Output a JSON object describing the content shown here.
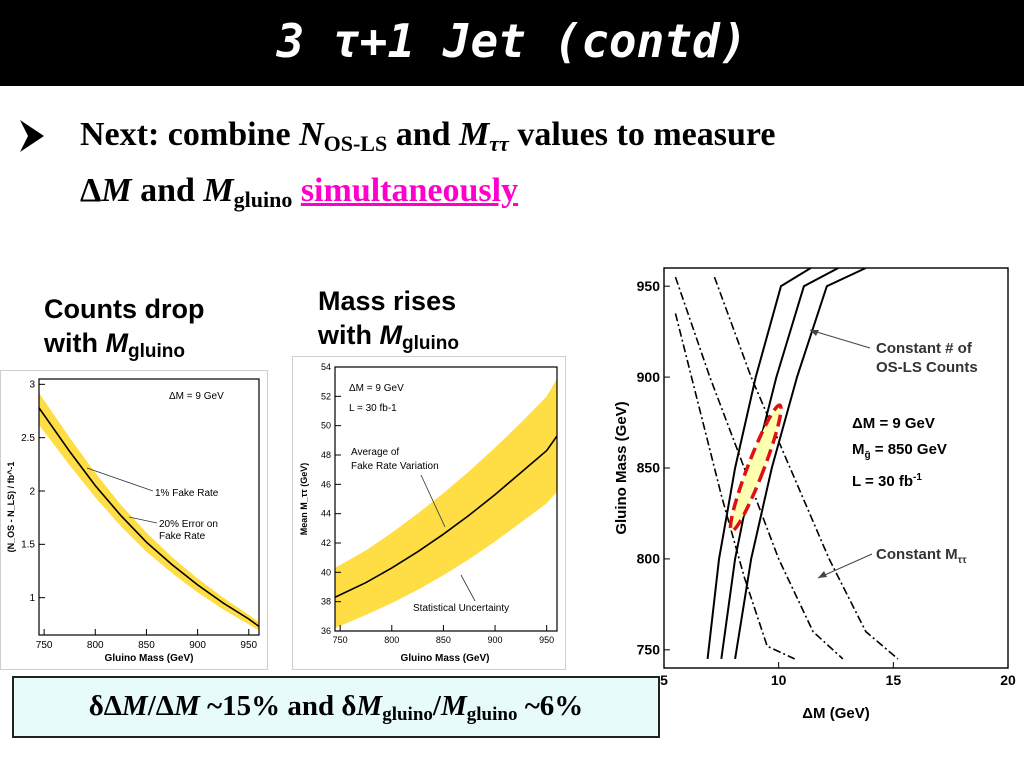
{
  "slide": {
    "title": "3 τ+1 Jet (contd)",
    "bullet": {
      "line1_a": "Next: combine ",
      "line1_n": "N",
      "line1_n_sub": "OS-LS",
      "line1_b": " and ",
      "line1_m": "M",
      "line1_m_sub": "ττ",
      "line1_c": " values to measure",
      "line2_delta": "Δ",
      "line2_m": "M",
      "line2_and": " and ",
      "line2_mg": "M",
      "line2_mg_sub": "gluino",
      "line2_highlight": "simultaneously"
    },
    "caption_left": {
      "line1": "Counts drop",
      "line2": "with ",
      "m": "M",
      "sub": "gluino"
    },
    "caption_mid": {
      "line1": "Mass rises",
      "line2": "with ",
      "m": "M",
      "sub": "gluino"
    },
    "summary": {
      "a": "δΔ",
      "b": "M",
      "c": "/Δ",
      "d": "M",
      "e": " ~15% and δ",
      "f": "M",
      "g": "gluino",
      "h": "/",
      "i": "M",
      "j": "gluino",
      "k": " ~6%"
    },
    "colors": {
      "title_bg": "#000000",
      "band": "#ffdd44",
      "highlight_text": "#ff00cc",
      "ellipse_edge": "#dd1111",
      "ellipse_fill": "#ffffb0",
      "summary_bg": "#e7fbfb"
    }
  },
  "chart_data": [
    {
      "type": "line",
      "xlabel": "Gluino Mass (GeV)",
      "ylabel": "(N_OS - N_LS) / fb^-1",
      "xlim": [
        745,
        960
      ],
      "ylim": [
        0.65,
        3.05
      ],
      "xticks": [
        "750",
        "800",
        "850",
        "900",
        "950"
      ],
      "yticks": [
        "1",
        "1.5",
        "2",
        "2.5",
        "3"
      ],
      "annotations": [
        "ΔM = 9 GeV",
        "1% Fake Rate",
        "20% Error on",
        "Fake Rate"
      ],
      "series": [
        {
          "x": [
            745,
            775,
            800,
            825,
            850,
            875,
            900,
            925,
            950,
            960
          ],
          "y": [
            2.78,
            2.37,
            2.05,
            1.77,
            1.52,
            1.31,
            1.12,
            0.95,
            0.8,
            0.73
          ]
        }
      ],
      "band": {
        "x": [
          745,
          775,
          800,
          825,
          850,
          875,
          900,
          925,
          950,
          960
        ],
        "upper": [
          2.92,
          2.5,
          2.17,
          1.87,
          1.61,
          1.38,
          1.18,
          1.0,
          0.84,
          0.77
        ],
        "lower": [
          2.62,
          2.24,
          1.94,
          1.67,
          1.43,
          1.23,
          1.05,
          0.89,
          0.75,
          0.69
        ]
      }
    },
    {
      "type": "line",
      "xlabel": "Gluino Mass (GeV)",
      "ylabel": "Mean M_ττ (GeV)",
      "xlim": [
        745,
        960
      ],
      "ylim": [
        36,
        54
      ],
      "xticks": [
        "750",
        "800",
        "850",
        "900",
        "950"
      ],
      "yticks": [
        "36",
        "38",
        "40",
        "42",
        "44",
        "46",
        "48",
        "50",
        "52",
        "54"
      ],
      "annotations": [
        "ΔM = 9 GeV",
        "L = 30 fb-1",
        "Average of",
        "Fake Rate Variation",
        "Statistical Uncertainty"
      ],
      "series": [
        {
          "x": [
            745,
            775,
            800,
            825,
            850,
            875,
            900,
            925,
            950,
            960
          ],
          "y": [
            38.3,
            39.3,
            40.3,
            41.4,
            42.6,
            43.9,
            45.3,
            46.8,
            48.3,
            49.3
          ]
        }
      ],
      "band": {
        "x": [
          745,
          775,
          800,
          825,
          850,
          875,
          900,
          925,
          950,
          960
        ],
        "upper": [
          40.3,
          41.5,
          42.7,
          44.0,
          45.4,
          46.9,
          48.5,
          50.2,
          52.0,
          53.2
        ],
        "lower": [
          36.2,
          37.1,
          37.9,
          38.8,
          39.8,
          40.9,
          42.1,
          43.4,
          44.7,
          45.5
        ]
      }
    },
    {
      "type": "line",
      "xlabel": "ΔM (GeV)",
      "ylabel": "Gluino Mass (GeV)",
      "xlim": [
        5,
        20
      ],
      "ylim": [
        740,
        960
      ],
      "xticks": [
        "5",
        "10",
        "15",
        "20"
      ],
      "yticks": [
        "750",
        "800",
        "850",
        "900",
        "950"
      ],
      "annotations": [
        "Constant # of",
        "OS-LS Counts",
        "ΔM = 9 GeV",
        "M",
        "g̃",
        " = 850 GeV",
        "L = 30 fb",
        "-1",
        "Constant M",
        "ττ"
      ],
      "solid_curves": [
        {
          "x": [
            6.9,
            7.4,
            8.1,
            9.0,
            10.1,
            11.4
          ],
          "y": [
            745,
            800,
            850,
            900,
            950,
            960
          ]
        },
        {
          "x": [
            7.5,
            8.1,
            8.9,
            9.9,
            11.1,
            12.6
          ],
          "y": [
            745,
            800,
            850,
            900,
            950,
            960
          ]
        },
        {
          "x": [
            8.1,
            8.8,
            9.7,
            10.8,
            12.1,
            13.8
          ],
          "y": [
            745,
            800,
            850,
            900,
            950,
            960
          ]
        }
      ],
      "dashdot_curves": [
        {
          "x": [
            5.5,
            6.5,
            7.5,
            8.5,
            9.5,
            10.7
          ],
          "y": [
            935,
            885,
            835,
            790,
            752,
            745
          ]
        },
        {
          "x": [
            5.5,
            7.0,
            8.5,
            10.0,
            11.5,
            12.8
          ],
          "y": [
            955,
            900,
            850,
            800,
            760,
            745
          ]
        },
        {
          "x": [
            7.2,
            8.8,
            10.5,
            12.2,
            13.8,
            15.2
          ],
          "y": [
            955,
            900,
            850,
            800,
            760,
            745
          ]
        }
      ],
      "ellipse": {
        "center_dm": 9.0,
        "center_mg": 850,
        "semi_dm": 0.35,
        "semi_mg": 37,
        "tilt_deg": 21
      }
    }
  ]
}
